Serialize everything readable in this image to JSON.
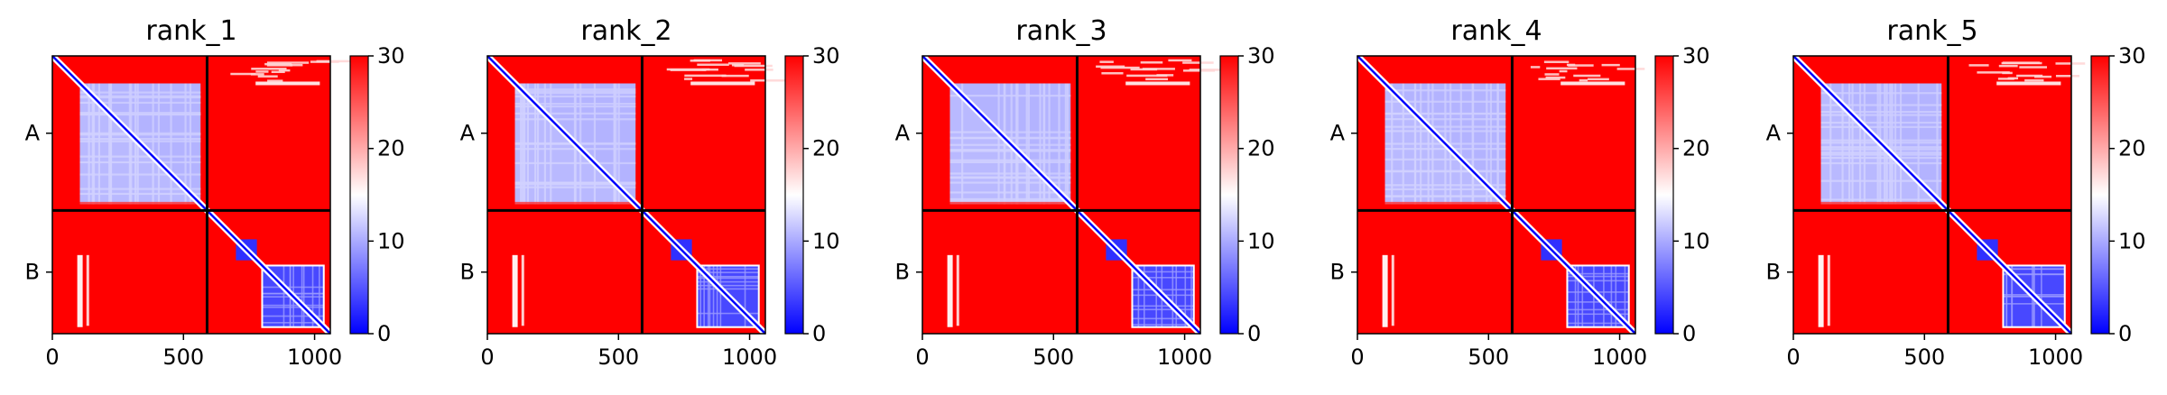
{
  "figure": {
    "colormap": "bwr",
    "colors": {
      "low": "#0000ff",
      "mid": "#ffffff",
      "high": "#ff0000",
      "boundary": "#000000"
    }
  },
  "chart_data": [
    {
      "type": "heatmap",
      "title": "rank_1",
      "xlim": [
        0,
        1060
      ],
      "x_ticks": [
        "0",
        "500",
        "1000"
      ],
      "y_categories": [
        "A",
        "B"
      ],
      "chain_boundary": 590,
      "chain_lengths": [
        590,
        470
      ],
      "colorbar": {
        "min": 0,
        "max": 30,
        "ticks": [
          "0",
          "10",
          "20",
          "30"
        ]
      }
    },
    {
      "type": "heatmap",
      "title": "rank_2",
      "xlim": [
        0,
        1060
      ],
      "x_ticks": [
        "0",
        "500",
        "1000"
      ],
      "y_categories": [
        "A",
        "B"
      ],
      "chain_boundary": 590,
      "chain_lengths": [
        590,
        470
      ],
      "colorbar": {
        "min": 0,
        "max": 30,
        "ticks": [
          "0",
          "10",
          "20",
          "30"
        ]
      }
    },
    {
      "type": "heatmap",
      "title": "rank_3",
      "xlim": [
        0,
        1060
      ],
      "x_ticks": [
        "0",
        "500",
        "1000"
      ],
      "y_categories": [
        "A",
        "B"
      ],
      "chain_boundary": 590,
      "chain_lengths": [
        590,
        470
      ],
      "colorbar": {
        "min": 0,
        "max": 30,
        "ticks": [
          "0",
          "10",
          "20",
          "30"
        ]
      }
    },
    {
      "type": "heatmap",
      "title": "rank_4",
      "xlim": [
        0,
        1060
      ],
      "x_ticks": [
        "0",
        "500",
        "1000"
      ],
      "y_categories": [
        "A",
        "B"
      ],
      "chain_boundary": 590,
      "chain_lengths": [
        590,
        470
      ],
      "colorbar": {
        "min": 0,
        "max": 30,
        "ticks": [
          "0",
          "10",
          "20",
          "30"
        ]
      }
    },
    {
      "type": "heatmap",
      "title": "rank_5",
      "xlim": [
        0,
        1060
      ],
      "x_ticks": [
        "0",
        "500",
        "1000"
      ],
      "y_categories": [
        "A",
        "B"
      ],
      "chain_boundary": 590,
      "chain_lengths": [
        590,
        470
      ],
      "colorbar": {
        "min": 0,
        "max": 30,
        "ticks": [
          "0",
          "10",
          "20",
          "30"
        ]
      }
    }
  ]
}
